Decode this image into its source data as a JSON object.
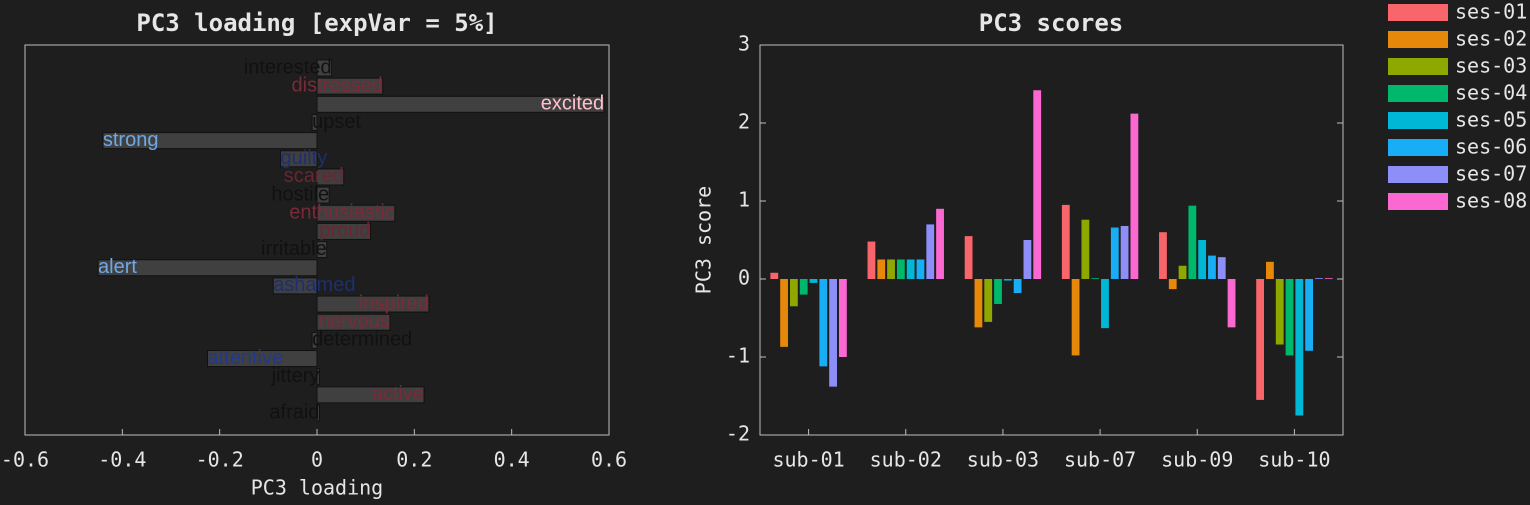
{
  "chart_data": [
    {
      "type": "barh",
      "title": "PC3 loading [expVar = 5%]",
      "xlabel": "PC3 loading",
      "categories": [
        "interested",
        "distressed",
        "excited",
        "upset",
        "strong",
        "guilty",
        "scared",
        "hostile",
        "enthusiastic",
        "proud",
        "irritable",
        "alert",
        "ashamed",
        "inspired",
        "nervous",
        "determined",
        "attentive",
        "jittery",
        "active",
        "afraid"
      ],
      "values": [
        0.03,
        0.135,
        0.59,
        -0.01,
        -0.44,
        -0.075,
        0.055,
        0.025,
        0.16,
        0.11,
        0.02,
        -0.45,
        -0.09,
        0.23,
        0.15,
        -0.01,
        -0.225,
        0.005,
        0.22,
        0.005
      ],
      "label_colors": [
        "#111111",
        "#7a2a38",
        "#ffc0cb",
        "#111111",
        "#6fa8e6",
        "#1c2f70",
        "#6a2632",
        "#111111",
        "#7a2a38",
        "#6a2632",
        "#111111",
        "#6fa8e6",
        "#1c2f70",
        "#7a2a38",
        "#7a2a38",
        "#111111",
        "#22388a",
        "#111111",
        "#7a2a38",
        "#111111"
      ],
      "color": "#404040",
      "xlim": [
        -0.6,
        0.6
      ],
      "xticks": [
        -0.6,
        -0.4,
        -0.2,
        0,
        0.2,
        0.4,
        0.6
      ]
    },
    {
      "type": "grouped_bar",
      "title": "PC3 scores",
      "ylabel": "PC3 score",
      "categories": [
        "sub-01",
        "sub-02",
        "sub-03",
        "sub-07",
        "sub-09",
        "sub-10"
      ],
      "series": [
        {
          "name": "ses-01",
          "color": "#f8656b",
          "values": [
            0.08,
            0.48,
            0.55,
            0.95,
            0.6,
            -1.55
          ]
        },
        {
          "name": "ses-02",
          "color": "#e6880a",
          "values": [
            -0.87,
            0.25,
            -0.62,
            -0.98,
            -0.13,
            0.22
          ]
        },
        {
          "name": "ses-03",
          "color": "#8fa800",
          "values": [
            -0.35,
            0.25,
            -0.55,
            0.76,
            0.17,
            -0.84
          ]
        },
        {
          "name": "ses-04",
          "color": "#00b86b",
          "values": [
            -0.2,
            0.25,
            -0.32,
            0.01,
            0.94,
            -0.98
          ]
        },
        {
          "name": "ses-05",
          "color": "#00b8d6",
          "values": [
            -0.05,
            0.25,
            -0.02,
            -0.63,
            0.5,
            -1.75
          ]
        },
        {
          "name": "ses-06",
          "color": "#18aef5",
          "values": [
            -1.12,
            0.25,
            -0.18,
            0.66,
            0.3,
            -0.92
          ]
        },
        {
          "name": "ses-07",
          "color": "#8d8ef8",
          "values": [
            -1.38,
            0.7,
            0.5,
            0.68,
            0.28,
            0.01
          ]
        },
        {
          "name": "ses-08",
          "color": "#fc68d2",
          "values": [
            -1.0,
            0.9,
            2.42,
            2.12,
            -0.62,
            0.01
          ]
        }
      ],
      "ylim": [
        -2,
        3
      ],
      "yticks": [
        -2,
        -1,
        0,
        1,
        2,
        3
      ]
    }
  ]
}
